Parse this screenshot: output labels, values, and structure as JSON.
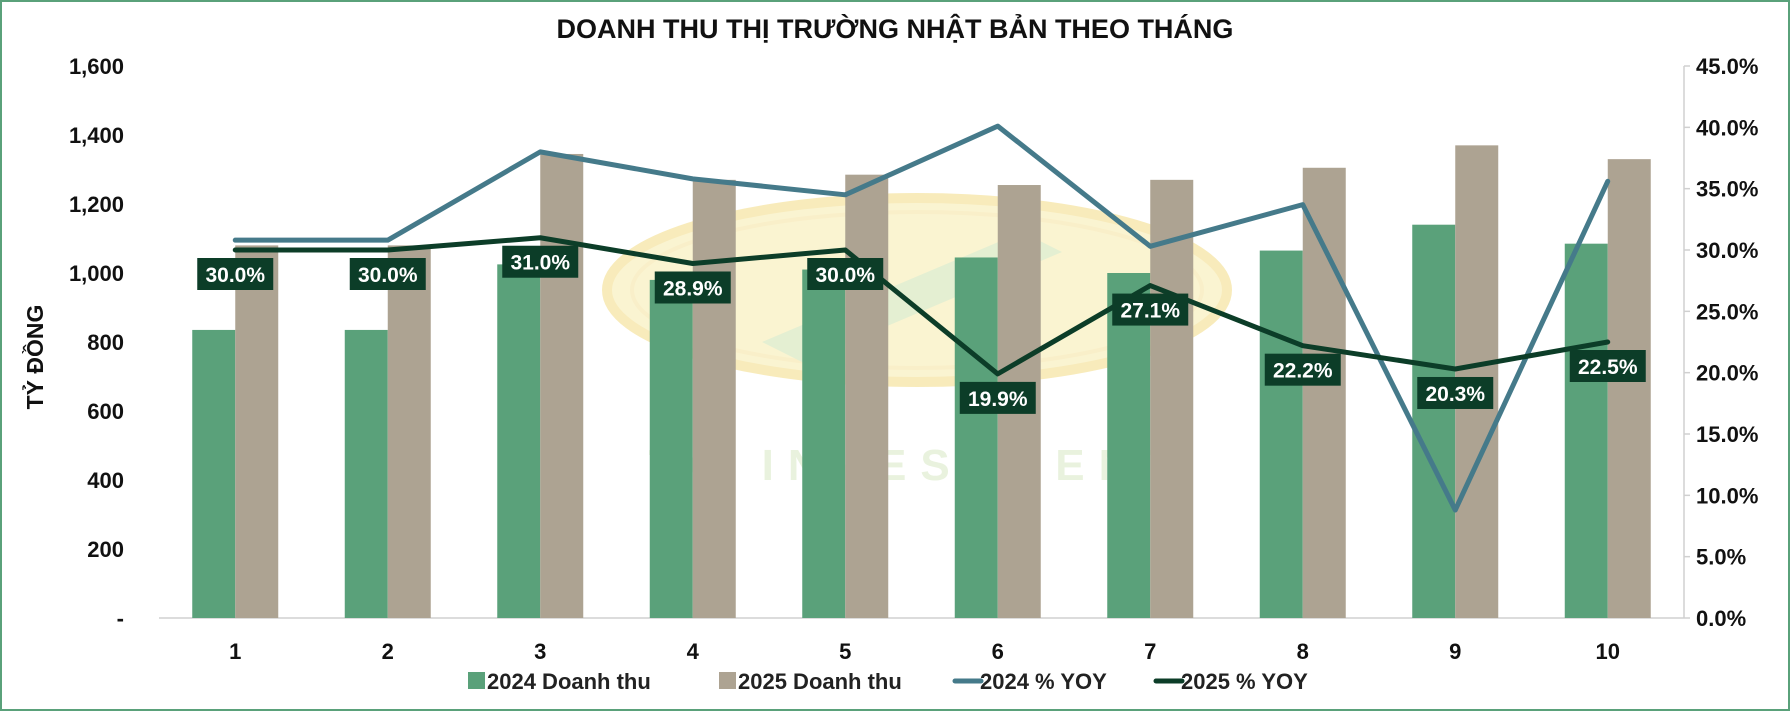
{
  "chart_data": {
    "type": "bar",
    "title": "DOANH THU THỊ TRƯỜNG NHẬT BẢN THEO THÁNG",
    "ylabel": "TỶ ĐỒNG",
    "ylim": [
      0,
      1600
    ],
    "y2lim": [
      0,
      45
    ],
    "yticks": [
      "-",
      "200",
      "400",
      "600",
      "800",
      "1,000",
      "1,200",
      "1,400",
      "1,600"
    ],
    "y2ticks": [
      "0.0%",
      "5.0%",
      "10.0%",
      "15.0%",
      "20.0%",
      "25.0%",
      "30.0%",
      "35.0%",
      "40.0%",
      "45.0%"
    ],
    "categories": [
      "1",
      "2",
      "3",
      "4",
      "5",
      "6",
      "7",
      "8",
      "9",
      "10"
    ],
    "legend_position": "bottom",
    "grid": false,
    "series": [
      {
        "name": "2024 Doanh thu",
        "type": "bar",
        "axis": "left",
        "color": "#5aa17a",
        "values": [
          835,
          835,
          1025,
          980,
          1010,
          1045,
          1000,
          1065,
          1140,
          1085
        ]
      },
      {
        "name": "2025 Doanh thu",
        "type": "bar",
        "axis": "left",
        "color": "#ada392",
        "values": [
          1080,
          1080,
          1345,
          1270,
          1285,
          1255,
          1270,
          1305,
          1370,
          1330
        ]
      },
      {
        "name": "2024 % YOY",
        "type": "line",
        "axis": "right",
        "color": "#457a8a",
        "values": [
          30.8,
          30.8,
          38.0,
          35.8,
          34.5,
          40.1,
          30.3,
          33.7,
          8.8,
          35.6
        ]
      },
      {
        "name": "2025 % YOY",
        "type": "line",
        "axis": "right",
        "color": "#0c3d28",
        "values": [
          30.0,
          30.0,
          31.0,
          28.9,
          30.0,
          19.9,
          27.1,
          22.2,
          20.3,
          22.5
        ],
        "data_labels": [
          "30.0%",
          "30.0%",
          "31.0%",
          "28.9%",
          "30.0%",
          "19.9%",
          "27.1%",
          "22.2%",
          "20.3%",
          "22.5%"
        ]
      }
    ]
  },
  "watermark": {
    "text": "TC INVESTMENT"
  }
}
